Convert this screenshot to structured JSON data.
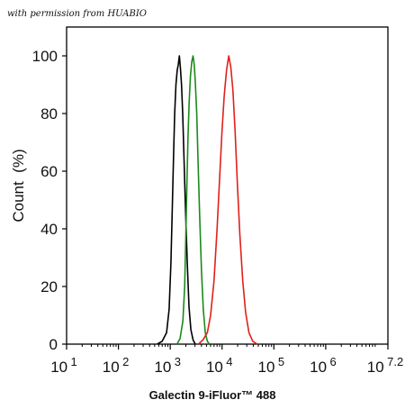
{
  "credit": "with permission from HUABIO",
  "chart_data": {
    "type": "line",
    "x_scale": "log",
    "xlabel": "Galectin 9-iFluor™ 488",
    "ylabel": "Count  (%)",
    "xlim": [
      10,
      15848932
    ],
    "ylim": [
      0,
      110
    ],
    "x_ticks": [
      {
        "base": "10",
        "exp": "1",
        "value": 10
      },
      {
        "base": "10",
        "exp": "2",
        "value": 100
      },
      {
        "base": "10",
        "exp": "3",
        "value": 1000
      },
      {
        "base": "10",
        "exp": "4",
        "value": 10000
      },
      {
        "base": "10",
        "exp": "5",
        "value": 100000
      },
      {
        "base": "10",
        "exp": "6",
        "value": 1000000
      },
      {
        "base": "10",
        "exp": "7.2",
        "value": 15848932
      }
    ],
    "y_ticks": [
      0,
      20,
      40,
      60,
      80,
      100
    ],
    "grid": false,
    "series": [
      {
        "color": "#000000",
        "points": [
          [
            560,
            0
          ],
          [
            700,
            1
          ],
          [
            850,
            4
          ],
          [
            950,
            12
          ],
          [
            1030,
            28
          ],
          [
            1100,
            48
          ],
          [
            1160,
            66
          ],
          [
            1220,
            80
          ],
          [
            1290,
            90
          ],
          [
            1360,
            95
          ],
          [
            1430,
            97
          ],
          [
            1500,
            100
          ],
          [
            1570,
            96
          ],
          [
            1650,
            90
          ],
          [
            1740,
            80
          ],
          [
            1850,
            64
          ],
          [
            1980,
            46
          ],
          [
            2130,
            28
          ],
          [
            2300,
            13
          ],
          [
            2500,
            5
          ],
          [
            2750,
            1.5
          ],
          [
            3050,
            0
          ]
        ]
      },
      {
        "color": "#1a8a1a",
        "points": [
          [
            1350,
            0
          ],
          [
            1550,
            2
          ],
          [
            1750,
            8
          ],
          [
            1900,
            20
          ],
          [
            2000,
            38
          ],
          [
            2100,
            56
          ],
          [
            2200,
            72
          ],
          [
            2320,
            84
          ],
          [
            2450,
            93
          ],
          [
            2600,
            98
          ],
          [
            2750,
            100
          ],
          [
            2900,
            97
          ],
          [
            3050,
            91
          ],
          [
            3250,
            80
          ],
          [
            3450,
            63
          ],
          [
            3700,
            44
          ],
          [
            4000,
            26
          ],
          [
            4350,
            12
          ],
          [
            4750,
            4
          ],
          [
            5200,
            1
          ],
          [
            5700,
            0
          ]
        ]
      },
      {
        "color": "#e0201a",
        "points": [
          [
            3500,
            0
          ],
          [
            4300,
            1.5
          ],
          [
            5200,
            4
          ],
          [
            6000,
            10
          ],
          [
            7000,
            22
          ],
          [
            8000,
            40
          ],
          [
            9000,
            58
          ],
          [
            10000,
            74
          ],
          [
            11000,
            86
          ],
          [
            12200,
            95
          ],
          [
            13500,
            100
          ],
          [
            14800,
            96
          ],
          [
            16200,
            88
          ],
          [
            17800,
            74
          ],
          [
            19700,
            56
          ],
          [
            22000,
            38
          ],
          [
            25000,
            22
          ],
          [
            28500,
            11
          ],
          [
            33000,
            4
          ],
          [
            39000,
            1
          ],
          [
            48000,
            0
          ]
        ]
      }
    ]
  }
}
